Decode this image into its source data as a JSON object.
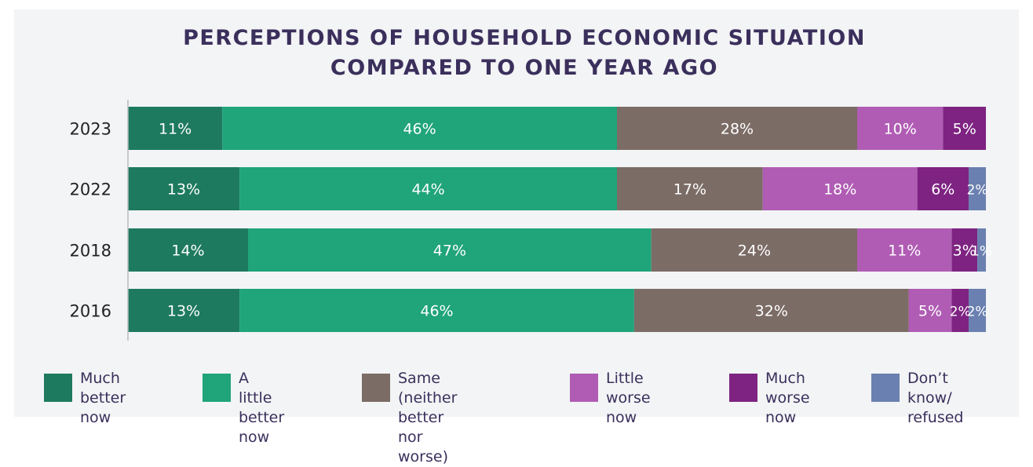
{
  "chart_data": {
    "type": "bar",
    "orientation": "horizontal",
    "stacked": true,
    "title": "PERCEPTIONS OF HOUSEHOLD ECONOMIC SITUATION\nCOMPARED TO ONE YEAR AGO",
    "title_lines": [
      "PERCEPTIONS OF HOUSEHOLD ECONOMIC SITUATION",
      "COMPARED TO ONE YEAR AGO"
    ],
    "categories": [
      "2023",
      "2022",
      "2018",
      "2016"
    ],
    "xlim": [
      0,
      100
    ],
    "grid": false,
    "legend_position": "bottom",
    "series": [
      {
        "name": "Much better now",
        "legend_label": "Much better\nnow",
        "color": "#1e7a5e",
        "values": [
          11,
          13,
          14,
          13
        ],
        "labels": [
          "11%",
          "13%",
          "14%",
          "13%"
        ]
      },
      {
        "name": "A little better now",
        "legend_label": "A little\nbetter now",
        "color": "#20a47a",
        "values": [
          46,
          44,
          47,
          46
        ],
        "labels": [
          "46%",
          "44%",
          "47%",
          "46%"
        ]
      },
      {
        "name": "Same (neither better nor worse)",
        "legend_label": "Same (neither\nbetter nor worse)",
        "color": "#7c6c66",
        "values": [
          28,
          17,
          24,
          32
        ],
        "labels": [
          "28%",
          "17%",
          "24%",
          "32%"
        ]
      },
      {
        "name": "Little worse now",
        "legend_label": "Little worse\nnow",
        "color": "#b05cb4",
        "values": [
          10,
          18,
          11,
          5
        ],
        "labels": [
          "10%",
          "18%",
          "11%",
          "5%"
        ]
      },
      {
        "name": "Much worse now",
        "legend_label": "Much\nworse now",
        "color": "#7e2382",
        "values": [
          5,
          6,
          3,
          2
        ],
        "labels": [
          "5%",
          "6%",
          "3%",
          "2%"
        ]
      },
      {
        "name": "Don't know/ refused",
        "legend_label": "Don’t know/\nrefused",
        "color": "#6a80b0",
        "values": [
          0,
          2,
          1,
          2
        ],
        "labels": [
          "",
          "2%",
          "1%",
          "2%"
        ]
      }
    ]
  }
}
